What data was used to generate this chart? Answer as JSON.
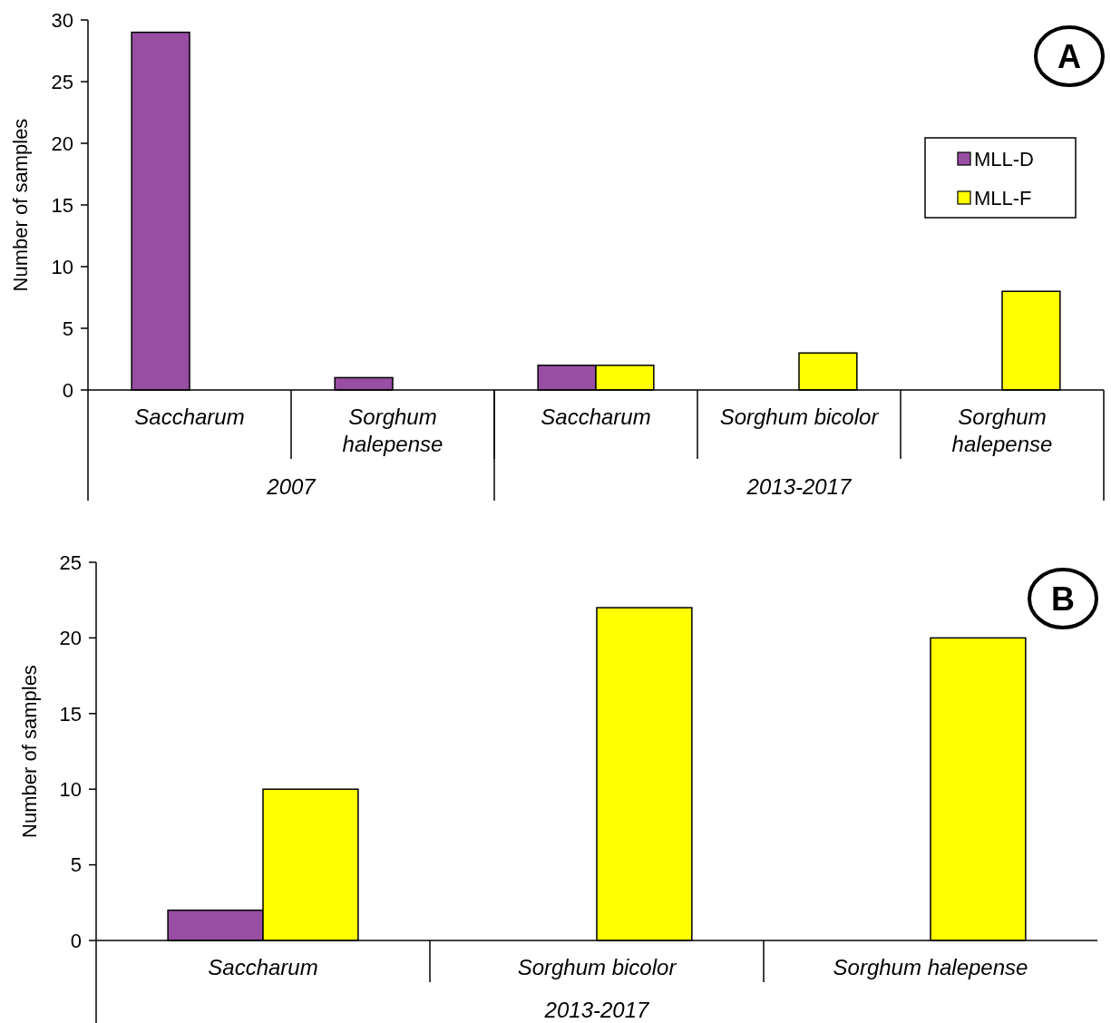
{
  "chart_data": [
    {
      "type": "bar",
      "title": "A",
      "ylabel": "Number of samples",
      "categories": [
        "Saccharum",
        "Sorghum halepense",
        "Saccharum",
        "Sorghum bicolor",
        "Sorghum halepense"
      ],
      "annotations": [
        "2007",
        "2013-2017"
      ],
      "series": [
        {
          "name": "MLL-D",
          "color": "#984ea3",
          "values": [
            29,
            1,
            2,
            null,
            null
          ]
        },
        {
          "name": "MLL-F",
          "color": "#ffff00",
          "values": [
            null,
            null,
            2,
            3,
            8
          ]
        }
      ],
      "ylim": [
        0,
        30
      ],
      "yticks": [
        0,
        5,
        10,
        15,
        20,
        25,
        30
      ],
      "legend": "top right",
      "grid": false
    },
    {
      "type": "bar",
      "title": "B",
      "ylabel": "Number of samples",
      "categories": [
        "Saccharum",
        "Sorghum bicolor",
        "Sorghum halepense"
      ],
      "annotations": [
        "2013-2017"
      ],
      "series": [
        {
          "color": "#984ea3",
          "values": [
            2,
            null,
            null
          ]
        },
        {
          "color": "#ffff00",
          "values": [
            10,
            22,
            20
          ]
        }
      ],
      "ylim": [
        0,
        25
      ],
      "yticks": [
        0,
        5,
        10,
        15,
        20,
        25
      ],
      "legend": false,
      "grid": false
    }
  ]
}
